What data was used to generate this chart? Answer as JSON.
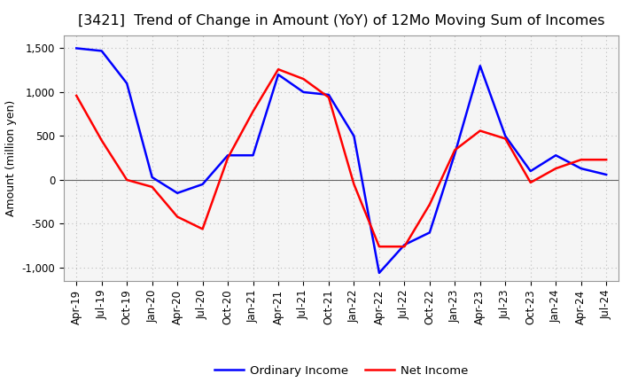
{
  "title": "[3421]  Trend of Change in Amount (YoY) of 12Mo Moving Sum of Incomes",
  "ylabel": "Amount (million yen)",
  "ylim": [
    -1150,
    1650
  ],
  "yticks": [
    -1000,
    -500,
    0,
    500,
    1000,
    1500
  ],
  "ytick_labels": [
    "-1,000",
    "-500",
    "0",
    "500",
    "1,000",
    "1,500"
  ],
  "legend_labels": [
    "Ordinary Income",
    "Net Income"
  ],
  "line_colors": [
    "#0000ff",
    "#ff0000"
  ],
  "x_labels": [
    "Apr-19",
    "Jul-19",
    "Oct-19",
    "Jan-20",
    "Apr-20",
    "Jul-20",
    "Oct-20",
    "Jan-21",
    "Apr-21",
    "Jul-21",
    "Oct-21",
    "Jan-22",
    "Apr-22",
    "Jul-22",
    "Oct-22",
    "Jan-23",
    "Apr-23",
    "Jul-23",
    "Oct-23",
    "Jan-24",
    "Apr-24",
    "Jul-24"
  ],
  "ordinary_income": [
    1500,
    1470,
    1100,
    30,
    -150,
    -50,
    280,
    280,
    1200,
    1000,
    970,
    500,
    -1060,
    -740,
    -600,
    300,
    1300,
    500,
    100,
    280,
    130,
    60
  ],
  "net_income": [
    960,
    450,
    0,
    -80,
    -420,
    -560,
    250,
    780,
    1260,
    1150,
    940,
    -50,
    -760,
    -760,
    -280,
    340,
    560,
    470,
    -30,
    130,
    230,
    230
  ],
  "background_color": "#ffffff",
  "plot_bg_color": "#f5f5f5",
  "grid_color": "#bbbbbb",
  "title_fontsize": 11.5,
  "axis_fontsize": 9,
  "tick_fontsize": 8.5,
  "legend_fontsize": 9.5
}
